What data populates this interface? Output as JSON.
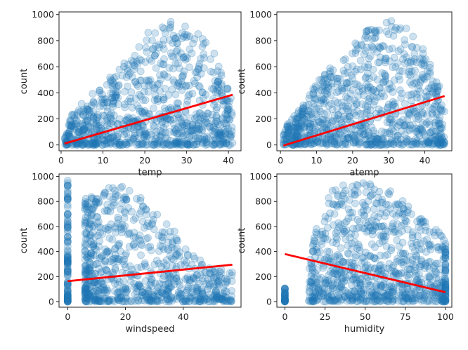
{
  "chart_data": [
    {
      "type": "scatter",
      "xlabel": "temp",
      "ylabel": "count",
      "xlim": [
        -0.5,
        43
      ],
      "ylim": [
        -45,
        1020
      ],
      "xticks": [
        0,
        10,
        20,
        30,
        40
      ],
      "yticks": [
        0,
        200,
        400,
        600,
        800,
        1000
      ],
      "point_color": "#1f77b4",
      "line_color": "#ff0000",
      "regression": {
        "x": [
          0.8,
          41
        ],
        "y": [
          10,
          385
        ]
      },
      "cloud": {
        "x_range": [
          0.8,
          41
        ],
        "y_max_profile": [
          [
            0.8,
            160
          ],
          [
            5,
            330
          ],
          [
            10,
            460
          ],
          [
            15,
            640
          ],
          [
            20,
            860
          ],
          [
            25,
            960
          ],
          [
            30,
            920
          ],
          [
            35,
            800
          ],
          [
            39,
            560
          ],
          [
            41,
            330
          ]
        ]
      }
    },
    {
      "type": "scatter",
      "xlabel": "atemp",
      "ylabel": "count",
      "xlim": [
        -1,
        47.5
      ],
      "ylim": [
        -45,
        1020
      ],
      "xticks": [
        0,
        10,
        20,
        30,
        40
      ],
      "yticks": [
        0,
        200,
        400,
        600,
        800,
        1000
      ],
      "point_color": "#1f77b4",
      "line_color": "#ff0000",
      "regression": {
        "x": [
          0.8,
          45.5
        ],
        "y": [
          -5,
          375
        ]
      },
      "cloud": {
        "x_range": [
          0.8,
          45.5
        ],
        "y_max_profile": [
          [
            0.8,
            150
          ],
          [
            6,
            300
          ],
          [
            12,
            560
          ],
          [
            18,
            700
          ],
          [
            24,
            880
          ],
          [
            30,
            960
          ],
          [
            35,
            900
          ],
          [
            40,
            720
          ],
          [
            45.5,
            360
          ]
        ]
      }
    },
    {
      "type": "scatter",
      "xlabel": "windspeed",
      "ylabel": "count",
      "xlim": [
        -3,
        60
      ],
      "ylim": [
        -45,
        1020
      ],
      "xticks": [
        0,
        20,
        40
      ],
      "yticks": [
        0,
        200,
        400,
        600,
        800,
        1000
      ],
      "point_color": "#1f77b4",
      "line_color": "#ff0000",
      "regression": {
        "x": [
          0,
          57
        ],
        "y": [
          163,
          295
        ]
      },
      "cloud": {
        "x_range": [
          0,
          57
        ],
        "y_max_profile": [
          [
            0,
            970
          ],
          [
            6,
            820
          ],
          [
            12,
            900
          ],
          [
            18,
            960
          ],
          [
            24,
            860
          ],
          [
            30,
            720
          ],
          [
            36,
            600
          ],
          [
            40,
            440
          ],
          [
            46,
            330
          ],
          [
            52,
            260
          ],
          [
            57,
            260
          ]
        ]
      }
    },
    {
      "type": "scatter",
      "xlabel": "humidity",
      "ylabel": "count",
      "xlim": [
        -5,
        104
      ],
      "ylim": [
        -45,
        1020
      ],
      "xticks": [
        0,
        25,
        50,
        75,
        100
      ],
      "yticks": [
        0,
        200,
        400,
        600,
        800,
        1000
      ],
      "point_color": "#1f77b4",
      "line_color": "#ff0000",
      "regression": {
        "x": [
          0,
          100
        ],
        "y": [
          380,
          75
        ]
      },
      "cloud": {
        "x_range": [
          0,
          100
        ],
        "y_max_profile": [
          [
            0,
            110
          ],
          [
            12,
            200
          ],
          [
            20,
            620
          ],
          [
            30,
            920
          ],
          [
            40,
            950
          ],
          [
            50,
            970
          ],
          [
            60,
            920
          ],
          [
            70,
            860
          ],
          [
            80,
            740
          ],
          [
            90,
            600
          ],
          [
            97,
            560
          ],
          [
            100,
            480
          ]
        ]
      }
    }
  ]
}
